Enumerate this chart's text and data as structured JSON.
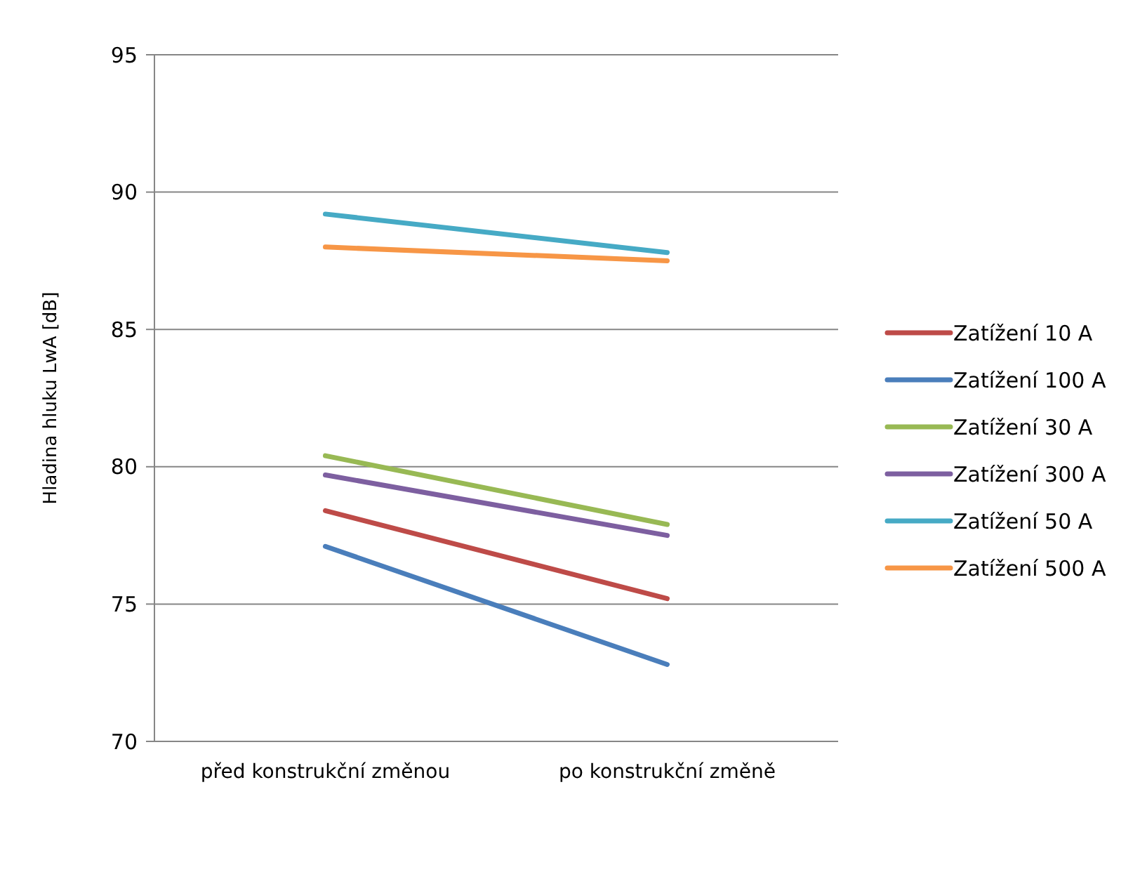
{
  "chart_data": {
    "type": "line",
    "ylabel": "Hladina hluku LwA [dB]",
    "categories": [
      "před konstrukční změnou",
      "po konstrukční změně"
    ],
    "ylim": [
      70,
      95
    ],
    "yticks": [
      70,
      75,
      80,
      85,
      90,
      95
    ],
    "grid": "y",
    "legend": "right",
    "marker": "none",
    "series": [
      {
        "name": "Zatížení 10 A",
        "color": "#be4b48",
        "values": [
          78.4,
          75.2
        ]
      },
      {
        "name": "Zatížení 100 A",
        "color": "#4a7ebb",
        "values": [
          77.1,
          72.8
        ]
      },
      {
        "name": "Zatížení 30 A",
        "color": "#98b954",
        "values": [
          80.4,
          77.9
        ]
      },
      {
        "name": "Zatížení 300 A",
        "color": "#7d5fa0",
        "values": [
          79.7,
          77.5
        ]
      },
      {
        "name": "Zatížení 50 A",
        "color": "#46aac5",
        "values": [
          89.2,
          87.8
        ]
      },
      {
        "name": "Zatížení 500 A",
        "color": "#f79646",
        "values": [
          88.0,
          87.5
        ]
      }
    ]
  }
}
